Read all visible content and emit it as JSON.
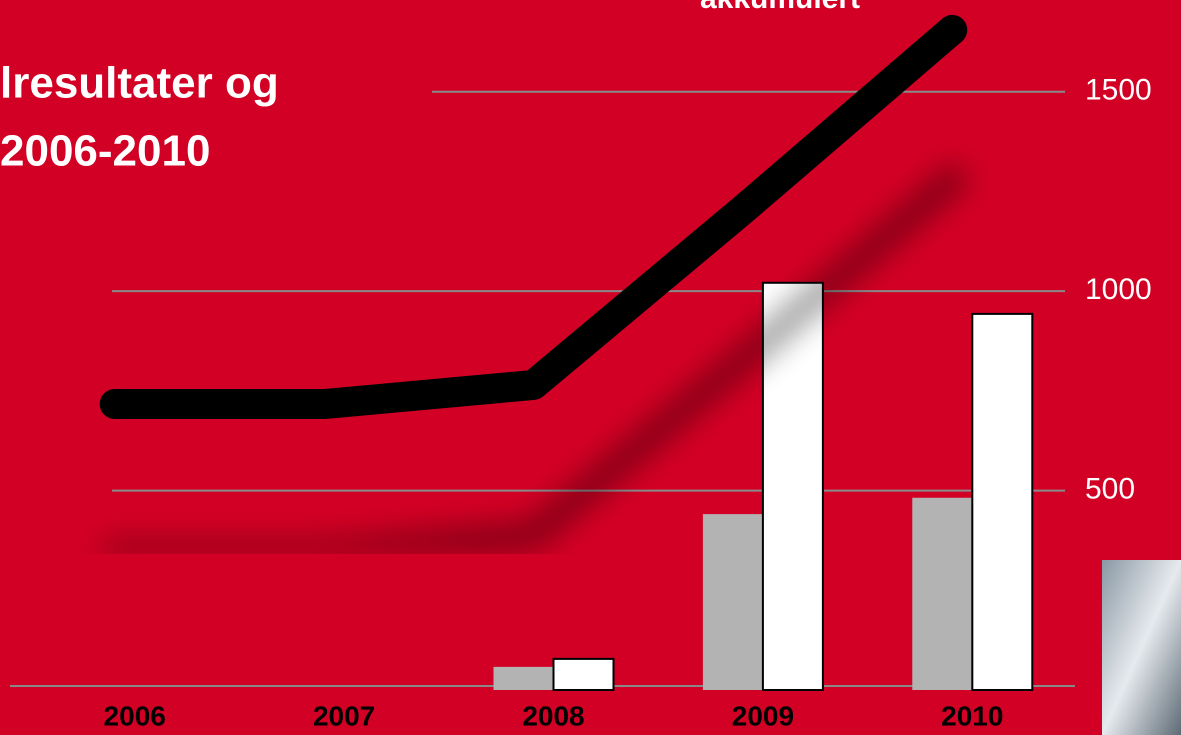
{
  "chart_data": {
    "type": "bar",
    "title": [
      "lresultater og",
      "2006-2010"
    ],
    "categories": [
      "2006",
      "2007",
      "2008",
      "2009",
      "2010"
    ],
    "series": [
      {
        "color": "#b3b3b3",
        "values": [
          0,
          0,
          58,
          441,
          482
        ]
      },
      {
        "color": "#ffffff",
        "values": [
          0,
          0,
          78,
          1021,
          943
        ]
      },
      {
        "name": "akkumulert",
        "type": "line",
        "color": "#000000",
        "values": [
          717,
          717,
          765,
          1204,
          1655
        ]
      }
    ],
    "ylim": [
      0,
      1730
    ],
    "yticks": [
      500,
      1000,
      1500
    ],
    "grid": true
  }
}
